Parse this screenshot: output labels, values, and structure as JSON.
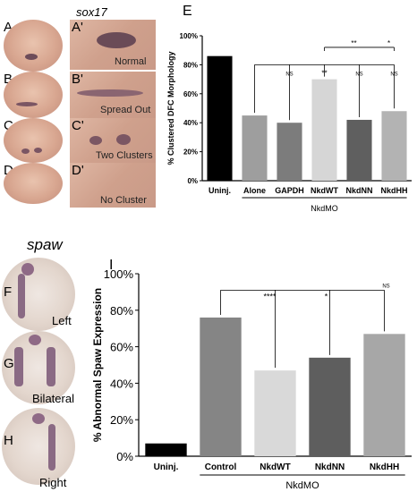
{
  "panels": {
    "sox17_label": "sox17",
    "spaw_label": "spaw",
    "row_letters": [
      "A",
      "B",
      "C",
      "D"
    ],
    "crop_letters": [
      "A'",
      "B'",
      "C'",
      "D'"
    ],
    "crop_captions": [
      "Normal",
      "Spread Out",
      "Two Clusters",
      "No Cluster"
    ],
    "spaw_letters": [
      "F",
      "G",
      "H"
    ],
    "spaw_captions": [
      "Left",
      "Bilateral",
      "Right"
    ],
    "chart_e_letter": "E",
    "chart_i_letter": "I"
  },
  "chart_data": [
    {
      "type": "bar",
      "panel": "E",
      "ylabel": "% Clustered DFC Morphology",
      "xgroup_label": "NkdMO",
      "ylim": [
        0,
        100
      ],
      "yticks": [
        "0%",
        "20%",
        "40%",
        "60%",
        "80%",
        "100%"
      ],
      "categories": [
        "Uninj.",
        "Alone",
        "GAPDH",
        "NkdWT",
        "NkdNN",
        "NkdHH"
      ],
      "values": [
        86,
        45,
        40,
        70,
        42,
        48
      ],
      "colors": [
        "#000000",
        "#9e9e9e",
        "#7c7c7c",
        "#d6d6d6",
        "#5f5f5f",
        "#b3b3b3"
      ],
      "annotations": [
        "NS",
        "**",
        "NS",
        "NS",
        "**",
        "*"
      ]
    },
    {
      "type": "bar",
      "panel": "I",
      "ylabel": "% Abnormal Spaw Expression",
      "xgroup_label": "NkdMO",
      "ylim": [
        0,
        100
      ],
      "yticks": [
        "0%",
        "20%",
        "40%",
        "60%",
        "80%",
        "100%"
      ],
      "categories": [
        "Uninj.",
        "Control",
        "NkdWT",
        "NkdNN",
        "NkdHH"
      ],
      "values": [
        7,
        76,
        47,
        54,
        67
      ],
      "colors": [
        "#000000",
        "#858585",
        "#d9d9d9",
        "#5e5e5e",
        "#a7a7a7"
      ],
      "annotations": [
        "****",
        "*",
        "NS"
      ]
    }
  ]
}
